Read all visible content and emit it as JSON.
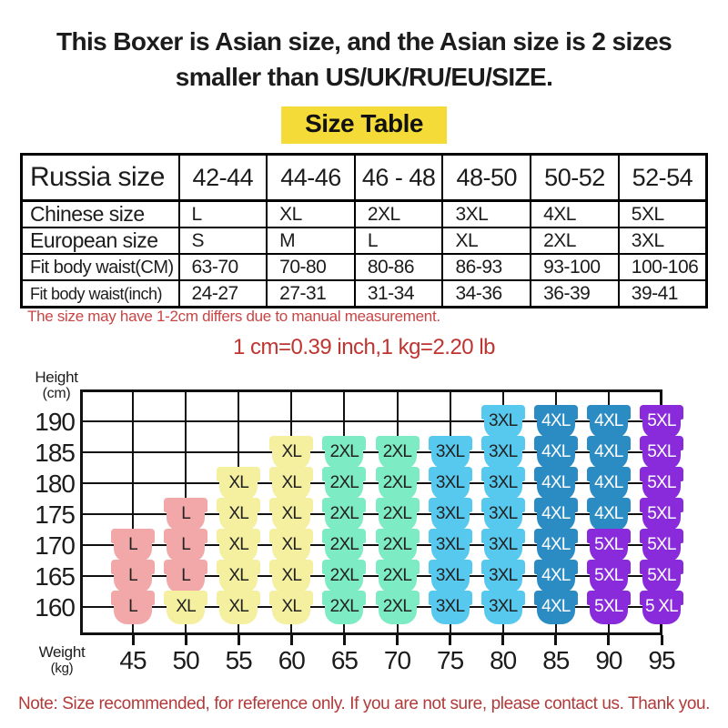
{
  "heading": {
    "line1": "This Boxer is Asian size, and the Asian size is 2 sizes",
    "line2_prefix": "smaller than ",
    "line2_bold": "US/UK/RU/EU/SIZE."
  },
  "size_table_title": "Size Table",
  "notes": {
    "measurement": "The size may have 1-2cm differs due to manual measurement.",
    "conversion": "1 cm=0.39 inch,1 kg=2.20 lb",
    "footer": "Note: Size recommended, for reference only. If you are not sure, please contact us. Thank you."
  },
  "colors": {
    "highlight_yellow": "#f5db38",
    "measurement_note_red": "#c94545",
    "conversion_note_red": "#bf3430",
    "footer_note_red": "#b23a3a",
    "grid_black": "#111111"
  },
  "axis": {
    "y_title_line1": "Height",
    "y_title_line2": "(cm)",
    "x_title_line1": "Weight",
    "x_title_line2": "(kg)"
  },
  "sizes": {
    "L": {
      "bg": "#f2a8a8",
      "fg": "#222222"
    },
    "XL": {
      "bg": "#f5f0a0",
      "fg": "#222222"
    },
    "2XL": {
      "bg": "#7debc3",
      "fg": "#222222"
    },
    "3XL": {
      "bg": "#58c9ee",
      "fg": "#222222"
    },
    "4XL": {
      "bg": "#2b8cc4",
      "fg": "#ffffff"
    },
    "5XL": {
      "bg": "#8a2bdb",
      "fg": "#ffffff"
    }
  },
  "chart_data": [
    {
      "type": "table",
      "title": "Size Table",
      "rows": [
        {
          "label": "Russia size",
          "values": [
            "42-44",
            "44-46",
            "46 - 48",
            "48-50",
            "50-52",
            "52-54"
          ]
        },
        {
          "label": "Chinese size",
          "values": [
            "L",
            "XL",
            "2XL",
            "3XL",
            "4XL",
            "5XL"
          ]
        },
        {
          "label": "European size",
          "values": [
            "S",
            "M",
            "L",
            "XL",
            "2XL",
            "3XL"
          ]
        },
        {
          "label": "Fit body waist(CM)",
          "values": [
            "63-70",
            "70-80",
            "80-86",
            "86-93",
            "93-100",
            "100-106"
          ]
        },
        {
          "label": "Fit body waist(inch)",
          "values": [
            "24-27",
            "27-31",
            "31-34",
            "34-36",
            "36-39",
            "39-41"
          ]
        }
      ]
    },
    {
      "type": "heatmap",
      "title": "Recommended size by height and weight",
      "xlabel": "Weight (kg)",
      "ylabel": "Height (cm)",
      "x": [
        45,
        50,
        55,
        60,
        65,
        70,
        75,
        80,
        85,
        90,
        95
      ],
      "y": [
        190,
        185,
        180,
        175,
        170,
        165,
        160
      ],
      "values": [
        [
          null,
          null,
          null,
          null,
          null,
          null,
          null,
          "3XL",
          "4XL",
          "4XL",
          "5XL"
        ],
        [
          null,
          null,
          null,
          "XL",
          "2XL",
          "2XL",
          "3XL",
          "3XL",
          "4XL",
          "4XL",
          "5XL"
        ],
        [
          null,
          null,
          "XL",
          "XL",
          "2XL",
          "2XL",
          "3XL",
          "3XL",
          "4XL",
          "4XL",
          "5XL"
        ],
        [
          null,
          "L",
          "XL",
          "XL",
          "2XL",
          "2XL",
          "3XL",
          "3XL",
          "4XL",
          "4XL",
          "5XL"
        ],
        [
          "L",
          "L",
          "XL",
          "XL",
          "2XL",
          "2XL",
          "3XL",
          "3XL",
          "4XL",
          "5XL",
          "5XL"
        ],
        [
          "L",
          "L",
          "XL",
          "XL",
          "2XL",
          "2XL",
          "3XL",
          "3XL",
          "4XL",
          "5XL",
          "5XL"
        ],
        [
          "L",
          "XL",
          "XL",
          "XL",
          "2XL",
          "2XL",
          "3XL",
          "3XL",
          "4XL",
          "5XL",
          "5 XL"
        ]
      ],
      "legend": [
        "L",
        "XL",
        "2XL",
        "3XL",
        "4XL",
        "5XL"
      ]
    }
  ]
}
